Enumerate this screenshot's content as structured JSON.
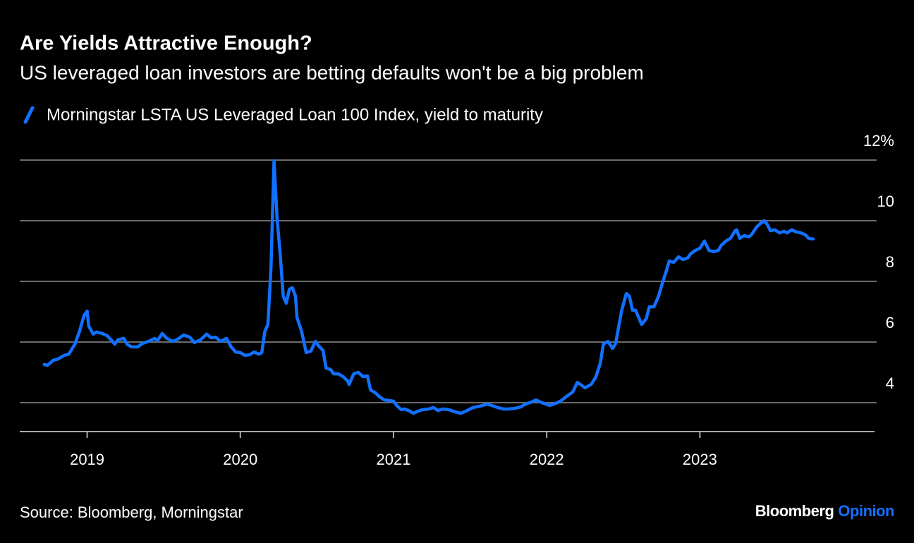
{
  "chart_data": {
    "type": "line",
    "title": "Are Yields Attractive Enough?",
    "subtitle": "US leveraged loan investors are betting defaults won't be a big problem",
    "source": "Source: Bloomberg, Morningstar",
    "brand": {
      "name": "Bloomberg",
      "section": "Opinion"
    },
    "grid": true,
    "xlim": [
      2018.56,
      2024.14
    ],
    "xticks": [
      2019,
      2020,
      2021,
      2022,
      2023
    ],
    "ylim": [
      3,
      12
    ],
    "yticks": [
      4,
      6,
      8,
      10,
      {
        "value": 12,
        "label": "12%"
      }
    ],
    "x": [
      2018.72,
      2018.74,
      2018.78,
      2018.81,
      2018.85,
      2018.88,
      2018.92,
      2018.95,
      2018.98,
      2019.0,
      2019.01,
      2019.04,
      2019.06,
      2019.1,
      2019.13,
      2019.16,
      2019.18,
      2019.2,
      2019.24,
      2019.26,
      2019.29,
      2019.33,
      2019.36,
      2019.4,
      2019.44,
      2019.46,
      2019.49,
      2019.52,
      2019.56,
      2019.59,
      2019.63,
      2019.67,
      2019.7,
      2019.74,
      2019.78,
      2019.81,
      2019.84,
      2019.87,
      2019.91,
      2019.94,
      2019.97,
      2020.0,
      2020.03,
      2020.06,
      2020.09,
      2020.12,
      2020.14,
      2020.16,
      2020.18,
      2020.2,
      2020.22,
      2020.24,
      2020.26,
      2020.28,
      2020.3,
      2020.32,
      2020.34,
      2020.36,
      2020.37,
      2020.4,
      2020.43,
      2020.46,
      2020.49,
      2020.51,
      2020.54,
      2020.56,
      2020.59,
      2020.61,
      2020.64,
      2020.67,
      2020.7,
      2020.71,
      2020.74,
      2020.77,
      2020.8,
      2020.83,
      2020.85,
      2020.88,
      2020.91,
      2020.94,
      2020.97,
      2021.0,
      2021.02,
      2021.05,
      2021.07,
      2021.1,
      2021.13,
      2021.16,
      2021.19,
      2021.23,
      2021.26,
      2021.29,
      2021.32,
      2021.36,
      2021.4,
      2021.44,
      2021.48,
      2021.52,
      2021.56,
      2021.61,
      2021.64,
      2021.68,
      2021.72,
      2021.75,
      2021.79,
      2021.83,
      2021.86,
      2021.9,
      2021.93,
      2021.96,
      2021.98,
      2022.02,
      2022.06,
      2022.09,
      2022.13,
      2022.17,
      2022.2,
      2022.22,
      2022.25,
      2022.29,
      2022.32,
      2022.35,
      2022.37,
      2022.4,
      2022.43,
      2022.45,
      2022.47,
      2022.49,
      2022.52,
      2022.54,
      2022.56,
      2022.58,
      2022.62,
      2022.65,
      2022.67,
      2022.7,
      2022.73,
      2022.76,
      2022.78,
      2022.8,
      2022.83,
      2022.86,
      2022.89,
      2022.92,
      2022.94,
      2022.97,
      2023.0,
      2023.03,
      2023.06,
      2023.09,
      2023.12,
      2023.14,
      2023.17,
      2023.2,
      2023.23,
      2023.24,
      2023.26,
      2023.29,
      2023.32,
      2023.34,
      2023.37,
      2023.4,
      2023.42,
      2023.44,
      2023.46,
      2023.49,
      2023.52,
      2023.55,
      2023.57,
      2023.6,
      2023.63,
      2023.66,
      2023.69,
      2023.71,
      2023.74
    ],
    "series": [
      {
        "name": "Morningstar LSTA US Leveraged Loan 100 Index, yield to maturity",
        "color": "#1170ff",
        "values": [
          5.26,
          5.23,
          5.4,
          5.44,
          5.56,
          5.6,
          5.93,
          6.35,
          6.88,
          7.02,
          6.53,
          6.26,
          6.33,
          6.28,
          6.21,
          6.05,
          5.93,
          6.07,
          6.12,
          5.93,
          5.84,
          5.84,
          5.95,
          6.02,
          6.12,
          6.05,
          6.28,
          6.12,
          6.02,
          6.09,
          6.23,
          6.16,
          5.98,
          6.07,
          6.26,
          6.14,
          6.16,
          6.02,
          6.12,
          5.84,
          5.67,
          5.65,
          5.56,
          5.58,
          5.67,
          5.6,
          5.65,
          6.35,
          6.58,
          8.44,
          11.98,
          10.07,
          8.91,
          7.51,
          7.28,
          7.74,
          7.79,
          7.51,
          6.81,
          6.35,
          5.65,
          5.7,
          6.02,
          5.88,
          5.72,
          5.14,
          5.09,
          4.95,
          4.95,
          4.86,
          4.72,
          4.6,
          4.95,
          5.0,
          4.86,
          4.88,
          4.42,
          4.33,
          4.19,
          4.09,
          4.07,
          4.05,
          3.91,
          3.77,
          3.79,
          3.74,
          3.65,
          3.72,
          3.77,
          3.79,
          3.84,
          3.74,
          3.79,
          3.77,
          3.7,
          3.65,
          3.74,
          3.84,
          3.88,
          3.95,
          3.91,
          3.84,
          3.79,
          3.79,
          3.81,
          3.86,
          3.95,
          4.02,
          4.09,
          4.02,
          3.98,
          3.91,
          3.98,
          4.05,
          4.21,
          4.35,
          4.67,
          4.6,
          4.49,
          4.6,
          4.84,
          5.3,
          5.93,
          6.02,
          5.79,
          5.95,
          6.51,
          7.05,
          7.6,
          7.51,
          7.05,
          7.05,
          6.58,
          6.77,
          7.16,
          7.16,
          7.51,
          8.02,
          8.33,
          8.67,
          8.63,
          8.81,
          8.72,
          8.77,
          8.91,
          9.02,
          9.09,
          9.33,
          9.02,
          8.98,
          9.02,
          9.19,
          9.33,
          9.42,
          9.67,
          9.7,
          9.42,
          9.51,
          9.47,
          9.56,
          9.79,
          9.93,
          10.0,
          9.88,
          9.67,
          9.7,
          9.6,
          9.65,
          9.6,
          9.7,
          9.63,
          9.6,
          9.53,
          9.42,
          9.4
        ]
      }
    ]
  }
}
